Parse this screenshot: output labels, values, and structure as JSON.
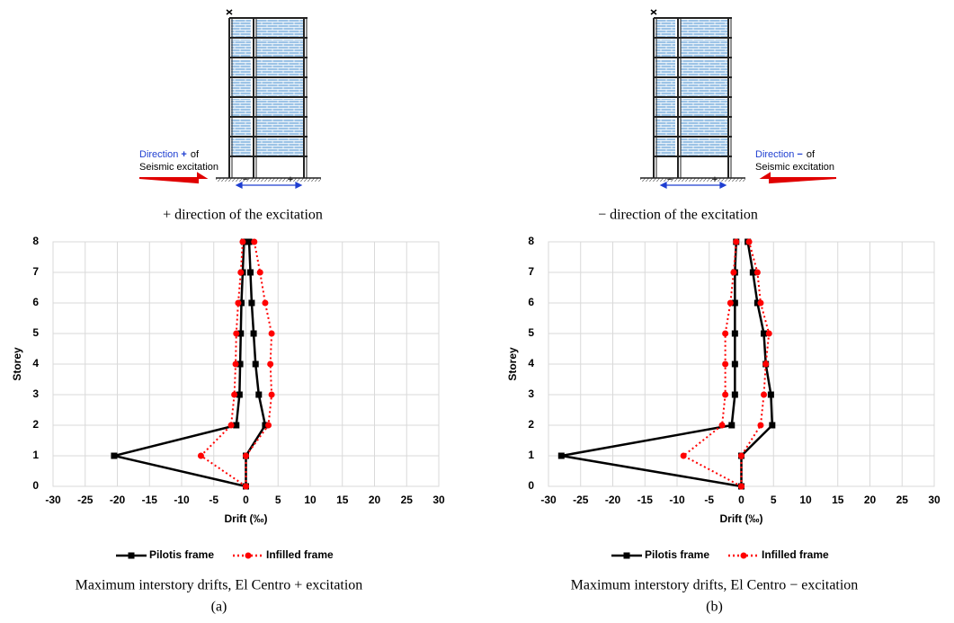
{
  "diagrams": [
    {
      "direction": "Direction",
      "sign": "+",
      "of": "of",
      "excitation": "Seismic excitation",
      "minus": "−",
      "plus": "+",
      "caption": "+ direction of the excitation"
    },
    {
      "direction": "Direction",
      "sign": "−",
      "of": "of",
      "excitation": "Seismic excitation",
      "minus": "−",
      "plus": "+",
      "caption": "− direction of the excitation"
    }
  ],
  "chart_data": [
    {
      "type": "line",
      "xlabel": "Drift (‰)",
      "ylabel": "Storey",
      "caption": "Maximum interstory drifts, El Centro + excitation",
      "label": "(a)",
      "y": [
        0,
        1,
        2,
        3,
        4,
        5,
        6,
        7,
        8
      ],
      "xlim": [
        -30,
        30
      ],
      "xticks": [
        -30,
        -25,
        -20,
        -15,
        -10,
        -5,
        0,
        5,
        10,
        15,
        20,
        25,
        30
      ],
      "ylim": [
        0,
        8
      ],
      "yticks": [
        0,
        1,
        2,
        3,
        4,
        5,
        6,
        7,
        8
      ],
      "grid": true,
      "series": [
        {
          "name": "Pilotis frame",
          "color": "#000000",
          "marker": "square",
          "style": "solid",
          "negative": [
            0,
            -20.5,
            -1.5,
            -1,
            -0.9,
            -0.8,
            -0.7,
            -0.5,
            -0.3
          ],
          "positive": [
            0,
            0,
            3,
            2,
            1.5,
            1.2,
            0.9,
            0.7,
            0.5
          ]
        },
        {
          "name": "Infilled frame",
          "color": "#ff0000",
          "marker": "circle",
          "style": "dotted",
          "negative": [
            0,
            -7,
            -2.3,
            -1.8,
            -1.6,
            -1.5,
            -1.2,
            -0.8,
            -0.5
          ],
          "positive": [
            0,
            0,
            3.5,
            4,
            3.8,
            4,
            3,
            2.2,
            1.3
          ]
        }
      ]
    },
    {
      "type": "line",
      "xlabel": "Drift (‰)",
      "ylabel": "Storey",
      "caption": "Maximum interstory drifts, El Centro − excitation",
      "label": "(b)",
      "y": [
        0,
        1,
        2,
        3,
        4,
        5,
        6,
        7,
        8
      ],
      "xlim": [
        -30,
        30
      ],
      "xticks": [
        -30,
        -25,
        -20,
        -15,
        -10,
        -5,
        0,
        5,
        10,
        15,
        20,
        25,
        30
      ],
      "ylim": [
        0,
        8
      ],
      "yticks": [
        0,
        1,
        2,
        3,
        4,
        5,
        6,
        7,
        8
      ],
      "grid": true,
      "series": [
        {
          "name": "Pilotis frame",
          "color": "#000000",
          "marker": "square",
          "style": "solid",
          "negative": [
            0,
            -28,
            -1.5,
            -1,
            -1,
            -1,
            -1,
            -1,
            -0.8
          ],
          "positive": [
            0,
            0,
            4.8,
            4.6,
            3.8,
            3.5,
            2.5,
            1.8,
            1
          ]
        },
        {
          "name": "Infilled frame",
          "color": "#ff0000",
          "marker": "circle",
          "style": "dotted",
          "negative": [
            0,
            -9,
            -3,
            -2.5,
            -2.5,
            -2.5,
            -1.7,
            -1.2,
            -0.8
          ],
          "positive": [
            0,
            0,
            3,
            3.5,
            3.8,
            4.3,
            3,
            2.5,
            1.2
          ]
        }
      ]
    }
  ]
}
